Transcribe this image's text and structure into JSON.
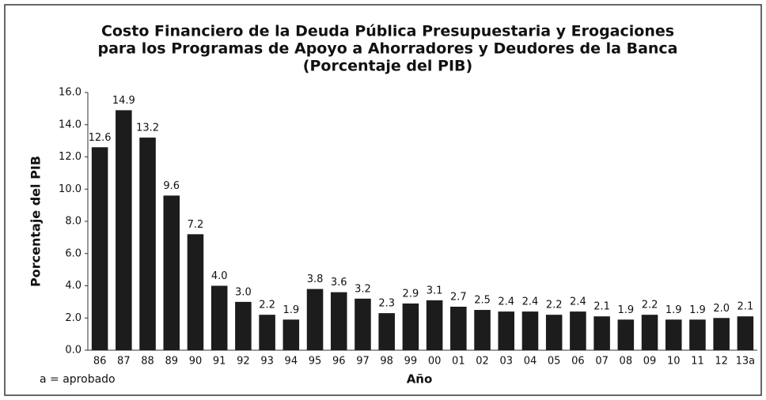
{
  "chart_data": {
    "type": "bar",
    "title": [
      "Costo Financiero de la Deuda Pública Presupuestaria y Erogaciones",
      "para los Programas de Apoyo a Ahorradores y Deudores de la Banca",
      "(Porcentaje del PIB)"
    ],
    "y_label": "Porcentaje del PIB",
    "x_label": "Año",
    "note": "a = aprobado",
    "categories": [
      "86",
      "87",
      "88",
      "89",
      "90",
      "91",
      "92",
      "93",
      "94",
      "95",
      "96",
      "97",
      "98",
      "99",
      "00",
      "01",
      "02",
      "03",
      "04",
      "05",
      "06",
      "07",
      "08",
      "09",
      "10",
      "11",
      "12",
      "13a"
    ],
    "values": [
      12.6,
      14.9,
      13.2,
      9.6,
      7.2,
      4.0,
      3.0,
      2.2,
      1.9,
      3.8,
      3.6,
      3.2,
      2.3,
      2.9,
      3.1,
      2.7,
      2.5,
      2.4,
      2.4,
      2.2,
      2.4,
      2.1,
      1.9,
      2.2,
      1.9,
      1.9,
      2.0,
      2.1
    ],
    "value_labels": [
      "12.6",
      "14.9",
      "13.2",
      "9.6",
      "7.2",
      "4.0",
      "3.0",
      "2.2",
      "1.9",
      "3.8",
      "3.6",
      "3.2",
      "2.3",
      "2.9",
      "3.1",
      "2.7",
      "2.5",
      "2.4",
      "2.4",
      "2.2",
      "2.4",
      "2.1",
      "1.9",
      "2.2",
      "1.9",
      "1.9",
      "2.0",
      "2.1"
    ],
    "color": "#1c1c1c",
    "ylim": [
      0,
      16
    ],
    "yticks": [
      {
        "value": 0,
        "label": "0.0"
      },
      {
        "value": 2,
        "label": "2.0"
      },
      {
        "value": 4,
        "label": "4.0"
      },
      {
        "value": 6,
        "label": "6.0"
      },
      {
        "value": 8,
        "label": "8.0"
      },
      {
        "value": 10,
        "label": "10.0"
      },
      {
        "value": 12,
        "label": "12.0"
      },
      {
        "value": 14,
        "label": "14.0"
      },
      {
        "value": 16,
        "label": "16.0"
      }
    ],
    "grid": false
  }
}
